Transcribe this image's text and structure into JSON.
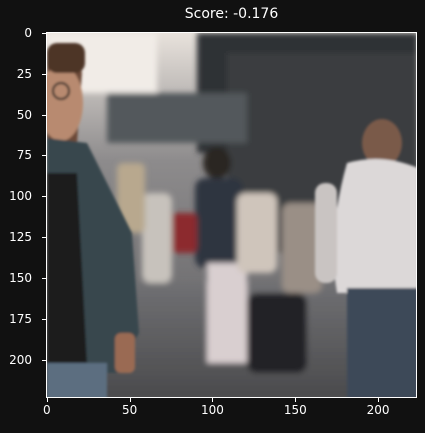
{
  "title": "Score: -0.176",
  "image_description_icon": "street-scene-photo",
  "x_ticks": [
    "0",
    "50",
    "100",
    "150",
    "200"
  ],
  "y_ticks": [
    "0",
    "25",
    "50",
    "75",
    "100",
    "125",
    "150",
    "175",
    "200"
  ],
  "colors": {
    "background": "#111111",
    "axis": "#ffffff"
  }
}
